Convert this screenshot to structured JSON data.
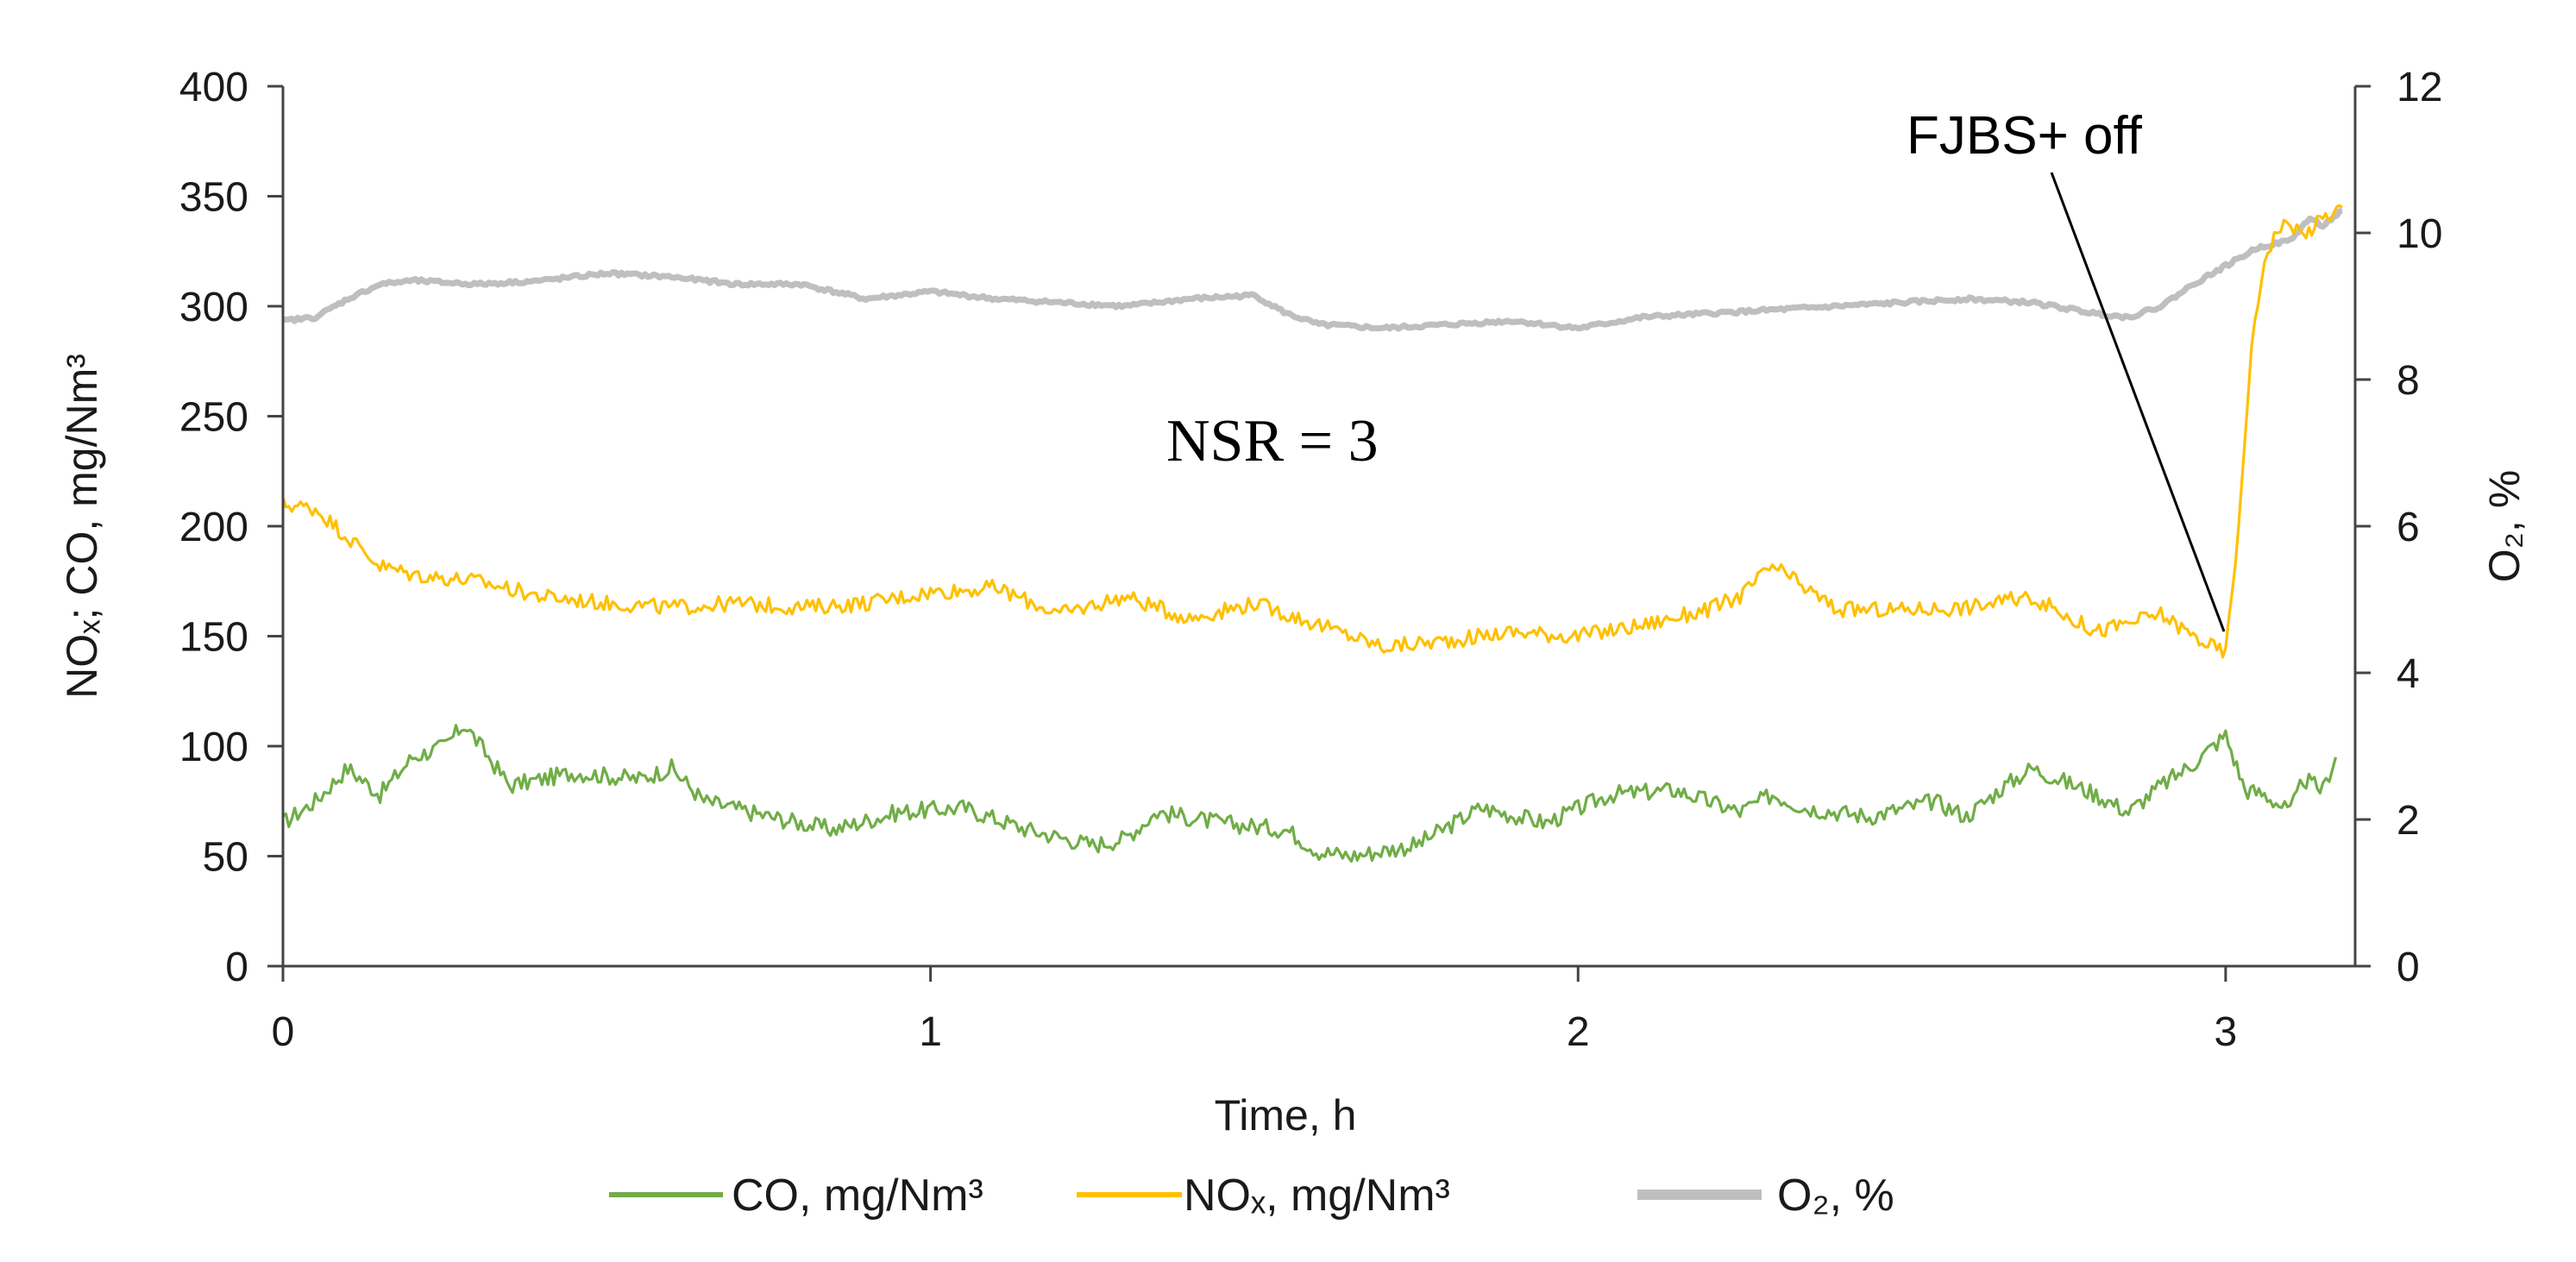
{
  "chart_data": {
    "type": "line",
    "title": "",
    "xlabel": "Time, h",
    "ylabel_left": "NOx; CO, mg/Nm3",
    "ylabel_right": "O2, %",
    "xlim": [
      0,
      3.2
    ],
    "ylim_left": [
      0,
      400
    ],
    "ylim_right": [
      0,
      12
    ],
    "x_ticks": [
      "0",
      "1",
      "2",
      "3"
    ],
    "y_left_ticks": [
      "0",
      "50",
      "100",
      "150",
      "200",
      "250",
      "300",
      "350",
      "400"
    ],
    "y_right_ticks": [
      "0",
      "2",
      "4",
      "6",
      "8",
      "10",
      "12"
    ],
    "grid": false,
    "legend_position": "bottom",
    "annotations": [
      {
        "text": "FJBS+ off",
        "x": 3.0,
        "y": 142
      },
      {
        "text": "NSR = 3"
      }
    ],
    "series": [
      {
        "name": "CO, mg/Nm3",
        "axis": "left",
        "color": "#70ad47",
        "x": [
          0,
          0.05,
          0.1,
          0.15,
          0.2,
          0.25,
          0.28,
          0.35,
          0.45,
          0.55,
          0.6,
          0.65,
          0.75,
          0.85,
          0.95,
          1.05,
          1.15,
          1.25,
          1.3,
          1.35,
          1.45,
          1.55,
          1.6,
          1.65,
          1.75,
          1.85,
          1.95,
          2.05,
          2.15,
          2.25,
          2.3,
          2.35,
          2.45,
          2.55,
          2.6,
          2.65,
          2.7,
          2.8,
          2.85,
          2.9,
          2.95,
          3.0,
          3.03,
          3.06,
          3.1,
          3.12,
          3.15,
          3.17
        ],
        "values": [
          65,
          75,
          90,
          78,
          95,
          100,
          110,
          82,
          88,
          85,
          90,
          75,
          68,
          62,
          70,
          72,
          62,
          55,
          58,
          70,
          65,
          62,
          52,
          50,
          55,
          72,
          65,
          78,
          80,
          70,
          78,
          72,
          68,
          75,
          68,
          80,
          90,
          78,
          70,
          82,
          92,
          105,
          80,
          78,
          70,
          85,
          80,
          95
        ]
      },
      {
        "name": "NOx, mg/Nm3",
        "axis": "left",
        "color": "#ffc000",
        "x": [
          0,
          0.05,
          0.1,
          0.15,
          0.2,
          0.3,
          0.4,
          0.5,
          0.6,
          0.7,
          0.8,
          0.9,
          1.0,
          1.1,
          1.2,
          1.3,
          1.4,
          1.5,
          1.6,
          1.7,
          1.8,
          1.9,
          2.0,
          2.1,
          2.2,
          2.25,
          2.3,
          2.35,
          2.4,
          2.5,
          2.6,
          2.7,
          2.8,
          2.9,
          2.95,
          3.0,
          3.02,
          3.04,
          3.06,
          3.08,
          3.1,
          3.12,
          3.15,
          3.18
        ],
        "values": [
          210,
          208,
          195,
          182,
          178,
          175,
          168,
          165,
          163,
          165,
          163,
          165,
          170,
          172,
          160,
          168,
          158,
          165,
          155,
          145,
          148,
          152,
          150,
          155,
          162,
          168,
          182,
          172,
          162,
          162,
          163,
          168,
          152,
          160,
          150,
          142,
          200,
          280,
          322,
          335,
          338,
          332,
          340,
          345
        ]
      },
      {
        "name": "O2, %",
        "axis": "right",
        "color": "#bfbfbf",
        "x": [
          0,
          0.05,
          0.1,
          0.15,
          0.2,
          0.3,
          0.4,
          0.5,
          0.6,
          0.7,
          0.8,
          0.9,
          1.0,
          1.1,
          1.2,
          1.3,
          1.4,
          1.5,
          1.55,
          1.6,
          1.7,
          1.8,
          1.9,
          2.0,
          2.1,
          2.2,
          2.3,
          2.4,
          2.5,
          2.6,
          2.7,
          2.8,
          2.85,
          2.9,
          2.95,
          3.0,
          3.05,
          3.1,
          3.13,
          3.15,
          3.18
        ],
        "values": [
          8.8,
          8.85,
          9.1,
          9.3,
          9.35,
          9.3,
          9.35,
          9.45,
          9.4,
          9.3,
          9.3,
          9.1,
          9.2,
          9.1,
          9.05,
          9.0,
          9.1,
          9.15,
          8.9,
          8.75,
          8.7,
          8.75,
          8.8,
          8.7,
          8.85,
          8.9,
          8.95,
          9.0,
          9.05,
          9.1,
          9.05,
          8.9,
          8.85,
          9.0,
          9.3,
          9.55,
          9.8,
          9.9,
          10.2,
          10.1,
          10.3
        ]
      }
    ]
  },
  "legend": {
    "co_label": "CO, mg/Nm³",
    "nox_label": "NOₓ, mg/Nm³",
    "o2_label": "O₂, %"
  },
  "axis_titles": {
    "x": "Time, h",
    "y_left": "NOₓ; CO, mg/Nm³",
    "y_right": "O₂, %"
  },
  "annotation_texts": {
    "fjbs": "FJBS+ off",
    "nsr": "NSR = 3"
  }
}
